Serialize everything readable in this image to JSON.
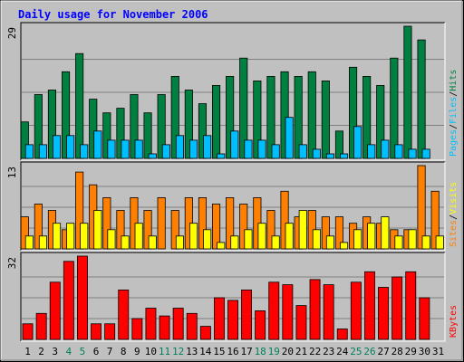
{
  "chart_data": {
    "type": "bar",
    "title": "Daily usage for November 2006",
    "days": [
      1,
      2,
      3,
      4,
      5,
      6,
      7,
      8,
      9,
      10,
      11,
      12,
      13,
      14,
      15,
      16,
      17,
      18,
      19,
      20,
      21,
      22,
      23,
      24,
      25,
      26,
      27,
      28,
      29,
      30,
      31
    ],
    "weekend_days": [
      4,
      5,
      11,
      12,
      18,
      19,
      25,
      26
    ],
    "panels": [
      {
        "id": "hits",
        "scale_max": 29,
        "scale_label": "29",
        "axis_label_parts": [
          "Pages",
          "/",
          "Files",
          "/",
          "Hits"
        ],
        "series": [
          {
            "name": "Hits",
            "color": "#008040",
            "values": [
              8,
              14,
              15,
              19,
              23,
              13,
              10,
              11,
              14,
              10,
              14,
              18,
              15,
              12,
              16,
              18,
              22,
              17,
              18,
              19,
              18,
              19,
              17,
              6,
              20,
              18,
              16,
              22,
              29,
              26,
              0
            ]
          },
          {
            "name": "Files",
            "color": "#00BFFF",
            "values": [
              3,
              3,
              5,
              5,
              3,
              6,
              4,
              4,
              4,
              1,
              3,
              5,
              4,
              5,
              1,
              6,
              4,
              4,
              3,
              9,
              3,
              2,
              1,
              1,
              7,
              3,
              4,
              3,
              2,
              2,
              0
            ]
          },
          {
            "name": "Pages",
            "color": "#00BFFF",
            "values": [
              0,
              0,
              0,
              0,
              0,
              0,
              0,
              0,
              0,
              0,
              0,
              0,
              0,
              0,
              0,
              0,
              0,
              0,
              0,
              0,
              0,
              0,
              0,
              0,
              0,
              0,
              0,
              0,
              0,
              0,
              0
            ]
          }
        ]
      },
      {
        "id": "visits",
        "scale_max": 13,
        "scale_label": "13",
        "axis_label_parts": [
          "Sites",
          "/",
          "Visits"
        ],
        "series": [
          {
            "name": "Sites",
            "color": "#FF8000",
            "values": [
              5,
              7,
              6,
              3,
              12,
              10,
              8,
              6,
              8,
              6,
              8,
              6,
              8,
              8,
              7,
              8,
              7,
              8,
              6,
              9,
              5,
              6,
              5,
              5,
              4,
              5,
              4,
              3,
              3,
              13,
              9
            ]
          },
          {
            "name": "Visits",
            "color": "#FFFF00",
            "values": [
              2,
              2,
              4,
              4,
              4,
              6,
              3,
              2,
              4,
              2,
              0,
              2,
              4,
              3,
              1,
              2,
              3,
              4,
              2,
              4,
              6,
              3,
              2,
              1,
              3,
              4,
              5,
              2,
              3,
              2,
              2
            ]
          }
        ]
      },
      {
        "id": "kbytes",
        "scale_max": 32,
        "scale_label": "32",
        "axis_label_parts": [
          "KBytes"
        ],
        "series": [
          {
            "name": "KBytes",
            "color": "#FF0000",
            "values": [
              6,
              10,
              22,
              30,
              32,
              6,
              6,
              19,
              8,
              12,
              9,
              12,
              10,
              5,
              16,
              15,
              19,
              11,
              22,
              21,
              13,
              23,
              21,
              4,
              22,
              26,
              20,
              24,
              26,
              16,
              0
            ]
          }
        ]
      }
    ]
  },
  "colors": {
    "background": "#C0C0C0",
    "title": "#0000FF",
    "weekday_label": "#000000",
    "weekend_label": "#00805C"
  }
}
